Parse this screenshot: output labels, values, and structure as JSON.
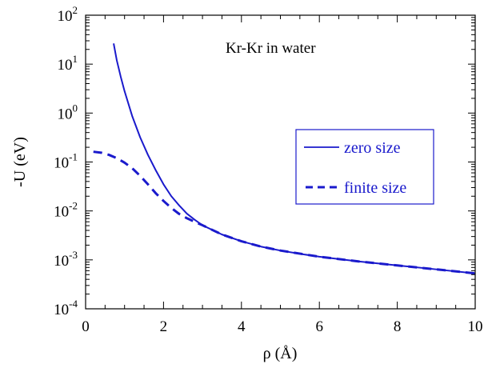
{
  "chart_data": {
    "type": "line",
    "annotation": "Kr-Kr in water",
    "xlabel": "ρ (Å)",
    "ylabel": "-U (eV)",
    "xlim": [
      0,
      10
    ],
    "ylim": [
      0.0001,
      100
    ],
    "yscale": "log",
    "grid": false,
    "legend_position": "right",
    "x_ticks": [
      {
        "value": 0,
        "label": "0"
      },
      {
        "value": 2,
        "label": "2"
      },
      {
        "value": 4,
        "label": "4"
      },
      {
        "value": 6,
        "label": "6"
      },
      {
        "value": 8,
        "label": "8"
      },
      {
        "value": 10,
        "label": "10"
      }
    ],
    "y_ticks": [
      {
        "value": 0.0001,
        "base": "10",
        "exp": "-4"
      },
      {
        "value": 0.001,
        "base": "10",
        "exp": "-3"
      },
      {
        "value": 0.01,
        "base": "10",
        "exp": "-2"
      },
      {
        "value": 0.1,
        "base": "10",
        "exp": "-1"
      },
      {
        "value": 1,
        "base": "10",
        "exp": "0"
      },
      {
        "value": 10,
        "base": "10",
        "exp": "1"
      },
      {
        "value": 100,
        "base": "10",
        "exp": "2"
      }
    ],
    "series": [
      {
        "name": "zero size",
        "style": "solid",
        "color": "#1a1acc",
        "points": [
          [
            0.72,
            26.5
          ],
          [
            0.8,
            12
          ],
          [
            0.9,
            5.6
          ],
          [
            1.0,
            2.8
          ],
          [
            1.2,
            0.85
          ],
          [
            1.4,
            0.32
          ],
          [
            1.6,
            0.14
          ],
          [
            1.8,
            0.068
          ],
          [
            2.0,
            0.035
          ],
          [
            2.2,
            0.02
          ],
          [
            2.4,
            0.013
          ],
          [
            2.6,
            0.0088
          ],
          [
            2.8,
            0.0066
          ],
          [
            3.0,
            0.0051
          ],
          [
            3.5,
            0.0033
          ],
          [
            4.0,
            0.0024
          ],
          [
            4.5,
            0.00187
          ],
          [
            5.0,
            0.00155
          ],
          [
            5.5,
            0.00133
          ],
          [
            6.0,
            0.00116
          ],
          [
            7.0,
            0.00093
          ],
          [
            8.0,
            0.00077
          ],
          [
            9.0,
            0.00064
          ],
          [
            10.0,
            0.00053
          ]
        ]
      },
      {
        "name": "finite size",
        "style": "dashed",
        "color": "#1a1acc",
        "points": [
          [
            0.2,
            0.162
          ],
          [
            0.4,
            0.155
          ],
          [
            0.6,
            0.14
          ],
          [
            0.8,
            0.12
          ],
          [
            1.0,
            0.097
          ],
          [
            1.2,
            0.074
          ],
          [
            1.4,
            0.052
          ],
          [
            1.6,
            0.035
          ],
          [
            1.8,
            0.023
          ],
          [
            2.0,
            0.016
          ],
          [
            2.2,
            0.0115
          ],
          [
            2.4,
            0.0087
          ],
          [
            2.6,
            0.0071
          ],
          [
            2.8,
            0.006
          ],
          [
            3.0,
            0.0051
          ],
          [
            3.5,
            0.0033
          ],
          [
            4.0,
            0.0024
          ],
          [
            4.5,
            0.00187
          ],
          [
            5.0,
            0.00155
          ],
          [
            6.0,
            0.00116
          ],
          [
            7.0,
            0.00093
          ],
          [
            8.0,
            0.00077
          ],
          [
            9.0,
            0.00064
          ],
          [
            10.0,
            0.00053
          ]
        ]
      }
    ]
  }
}
